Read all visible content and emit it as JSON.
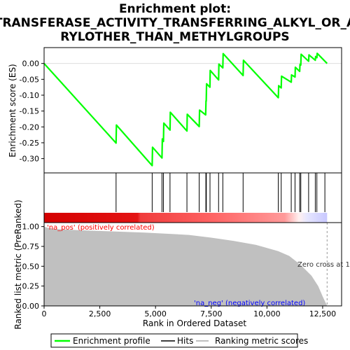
{
  "chart_data": {
    "type": "line",
    "title_lines": [
      "Enrichment plot:",
      "TRANSFERASE_ACTIVITY_TRANSFERRING_ALKYL_OR_A",
      "RYLOTHER_THAN_METHYLGROUPS"
    ],
    "xlabel": "Rank in Ordered Dataset",
    "xlim": [
      0,
      13350
    ],
    "x_ticks": [
      0,
      2500,
      5000,
      7500,
      10000,
      12500
    ],
    "x_tick_labels": [
      "0",
      "2,500",
      "5,000",
      "7,500",
      "10,000",
      "12,500"
    ],
    "enrichment": {
      "ylabel": "Enrichment score (ES)",
      "ylim": [
        -0.345,
        0.05
      ],
      "y_ticks": [
        0.0,
        -0.05,
        -0.1,
        -0.15,
        -0.2,
        -0.25,
        -0.3
      ],
      "y_tick_labels": [
        "0.00",
        "-0.05",
        "-0.10",
        "-0.15",
        "-0.20",
        "-0.25",
        "-0.30"
      ],
      "color": "#00ff00",
      "points": [
        [
          0,
          0.0
        ],
        [
          3230,
          -0.251
        ],
        [
          3245,
          -0.194
        ],
        [
          4850,
          -0.322
        ],
        [
          4865,
          -0.264
        ],
        [
          5290,
          -0.298
        ],
        [
          5305,
          -0.238
        ],
        [
          5355,
          -0.246
        ],
        [
          5370,
          -0.188
        ],
        [
          5650,
          -0.21
        ],
        [
          5665,
          -0.154
        ],
        [
          6410,
          -0.213
        ],
        [
          6425,
          -0.16
        ],
        [
          6960,
          -0.199
        ],
        [
          6975,
          -0.147
        ],
        [
          7250,
          -0.162
        ],
        [
          7265,
          -0.118
        ],
        [
          7275,
          -0.119
        ],
        [
          7290,
          -0.064
        ],
        [
          7440,
          -0.075
        ],
        [
          7455,
          -0.022
        ],
        [
          7830,
          -0.052
        ],
        [
          7845,
          -0.002
        ],
        [
          8020,
          -0.014
        ],
        [
          8035,
          0.031
        ],
        [
          8930,
          -0.038
        ],
        [
          8945,
          0.01
        ],
        [
          10510,
          -0.108
        ],
        [
          10525,
          -0.07
        ],
        [
          10640,
          -0.077
        ],
        [
          10655,
          -0.04
        ],
        [
          11090,
          -0.059
        ],
        [
          11105,
          -0.036
        ],
        [
          11260,
          -0.043
        ],
        [
          11275,
          -0.012
        ],
        [
          11470,
          -0.025
        ],
        [
          11485,
          -0.003
        ],
        [
          11520,
          -0.005
        ],
        [
          11535,
          0.029
        ],
        [
          11870,
          0.007
        ],
        [
          11885,
          0.027
        ],
        [
          12170,
          0.01
        ],
        [
          12185,
          0.022
        ],
        [
          12240,
          0.018
        ],
        [
          12255,
          0.032
        ],
        [
          12700,
          0.0
        ]
      ]
    },
    "hits": {
      "color": "#000000",
      "x": [
        3230,
        4850,
        5290,
        5355,
        5650,
        6410,
        6960,
        7260,
        7280,
        7445,
        7830,
        8020,
        8930,
        10510,
        10640,
        11090,
        11260,
        11470,
        11520,
        11870,
        12170,
        12240,
        12600
      ]
    },
    "ranking_metric": {
      "ylabel": "Ranked list metric (PreRanked)",
      "ylim": [
        0,
        1.05
      ],
      "y_ticks": [
        0.0,
        0.25,
        0.5,
        0.75,
        1.0
      ],
      "y_tick_labels": [
        "0.00",
        "0.25",
        "0.50",
        "0.75",
        "1.00"
      ],
      "fill_color": "#c0c0c0",
      "points": [
        [
          0,
          1.0
        ],
        [
          150,
          0.985
        ],
        [
          500,
          0.97
        ],
        [
          1500,
          0.955
        ],
        [
          3000,
          0.94
        ],
        [
          4500,
          0.925
        ],
        [
          5500,
          0.91
        ],
        [
          6500,
          0.895
        ],
        [
          7500,
          0.86
        ],
        [
          8500,
          0.82
        ],
        [
          9500,
          0.77
        ],
        [
          10500,
          0.69
        ],
        [
          11000,
          0.63
        ],
        [
          11500,
          0.52
        ],
        [
          12000,
          0.38
        ],
        [
          12300,
          0.25
        ],
        [
          12500,
          0.12
        ],
        [
          12650,
          0.03
        ],
        [
          12700,
          0.0
        ]
      ],
      "zero_cross_label": "Zero cross at 1",
      "zero_cross_x": 12700,
      "pos_label": "'na_pos' (positively correlated)",
      "neg_label": "'na_neg' (negatively correlated)",
      "pos_color": "#ff0000",
      "neg_color": "#0000ff"
    },
    "legend": {
      "position": "bottom",
      "entries": [
        {
          "label": "Enrichment profile",
          "color": "#00ff00"
        },
        {
          "label": "Hits",
          "color": "#000000"
        },
        {
          "label": "Ranking metric scores",
          "color": "#c0c0c0"
        }
      ]
    }
  }
}
